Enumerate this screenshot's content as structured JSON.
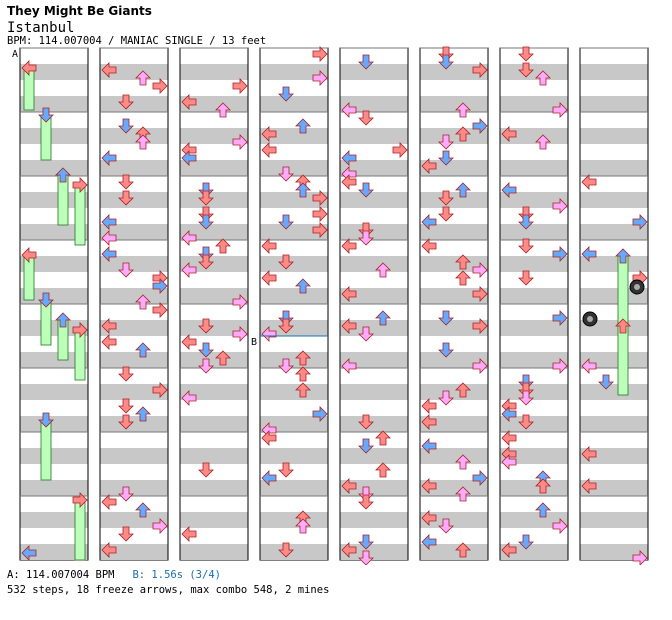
{
  "header": {
    "artist": "They Might Be Giants",
    "title": "Istanbul",
    "info": "BPM: 114.007004 / MANIAC SINGLE / 13 feet"
  },
  "markers": {
    "a": "A",
    "b": "B"
  },
  "footer": {
    "bpm_a": "A: 114.007004 BPM",
    "bpm_b": "B: 1.56s (3/4)",
    "stats": "532 steps, 18 freeze arrows, max combo 548, 2 mines"
  },
  "colors": {
    "red": "#ff8888",
    "blue": "#66aaff",
    "pink": "#ffaaff",
    "green": "#88ee88",
    "freeze": "#bbffbb",
    "band": "#c8c8c8"
  },
  "chart_data": {
    "type": "step-chart",
    "columns": 8,
    "measures_per_column": 8,
    "lanes": [
      "left",
      "down",
      "up",
      "right"
    ],
    "steps": 532,
    "freeze_arrows": 18,
    "max_combo": 548,
    "mines": 2
  }
}
